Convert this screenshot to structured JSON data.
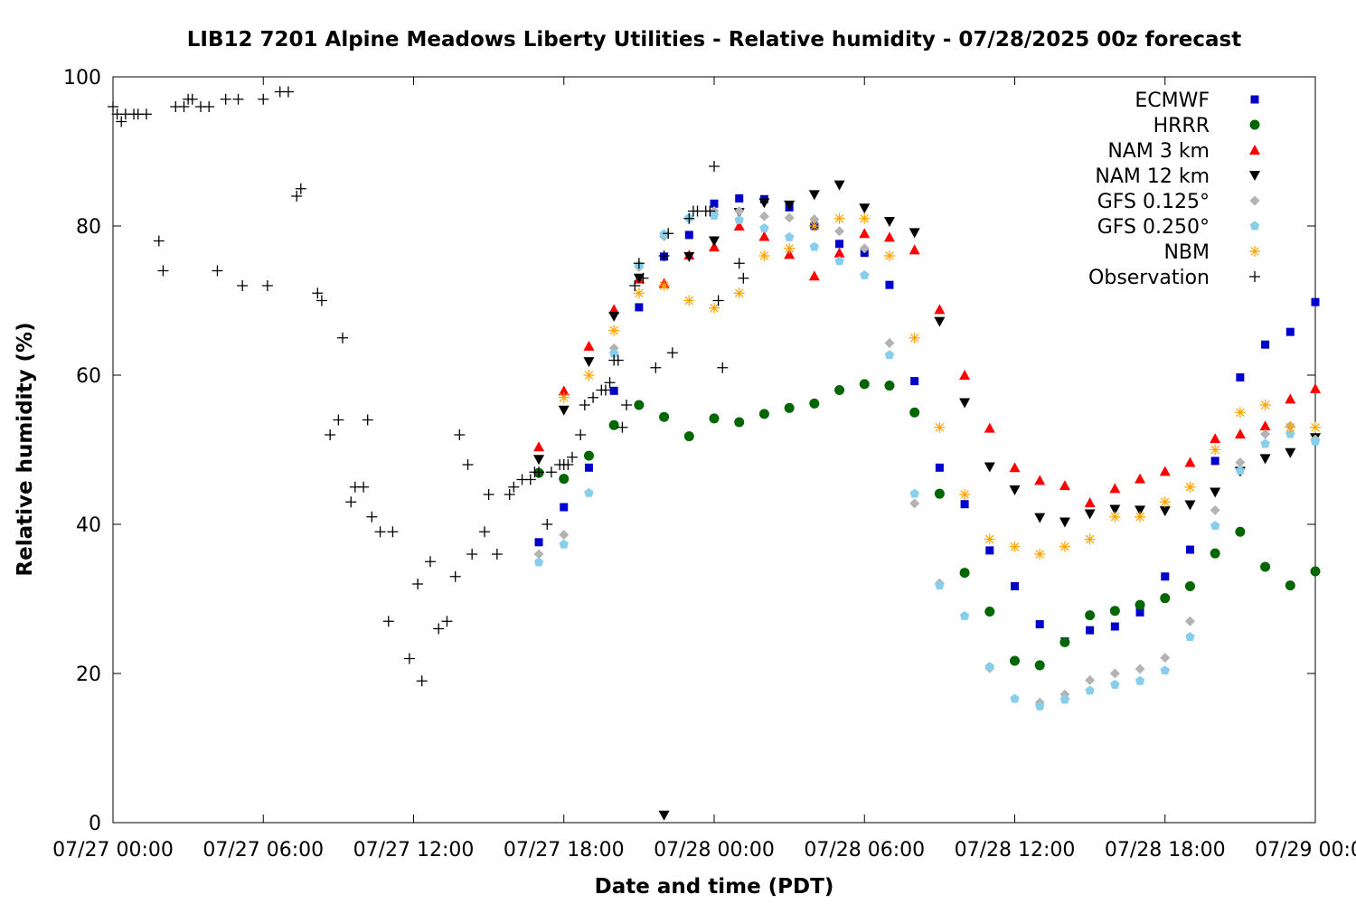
{
  "chart_data": {
    "type": "scatter",
    "title": "LIB12 7201 Alpine Meadows Liberty Utilities - Relative humidity - 07/28/2025 00z forecast",
    "xlabel": "Date and time (PDT)",
    "ylabel": "Relative humidity (%)",
    "xlim": [
      "07/27 00:00",
      "07/29 00:00"
    ],
    "ylim": [
      0,
      100
    ],
    "x_ticks": [
      "07/27 00:00",
      "07/27 06:00",
      "07/27 12:00",
      "07/27 18:00",
      "07/28 00:00",
      "07/28 06:00",
      "07/28 12:00",
      "07/28 18:00",
      "07/29 00:00"
    ],
    "y_ticks": [
      0,
      20,
      40,
      60,
      80,
      100
    ],
    "legend_position": "top-right",
    "grid": false,
    "series": [
      {
        "name": "ECMWF",
        "marker": "square",
        "color": "#0000cc",
        "x": [
          "07/27 17:00",
          "07/27 18:00",
          "07/27 19:00",
          "07/27 20:00",
          "07/27 21:00",
          "07/27 22:00",
          "07/27 23:00",
          "07/28 00:00",
          "07/28 01:00",
          "07/28 02:00",
          "07/28 03:00",
          "07/28 04:00",
          "07/28 05:00",
          "07/28 06:00",
          "07/28 07:00",
          "07/28 08:00",
          "07/28 09:00",
          "07/28 10:00",
          "07/28 11:00",
          "07/28 12:00",
          "07/28 13:00",
          "07/28 14:00",
          "07/28 15:00",
          "07/28 16:00",
          "07/28 17:00",
          "07/28 18:00",
          "07/28 19:00",
          "07/28 20:00",
          "07/28 21:00",
          "07/28 22:00",
          "07/28 23:00",
          "07/29 00:00"
        ],
        "y": [
          37.6,
          42.3,
          47.6,
          57.9,
          69.1,
          75.9,
          78.8,
          83.0,
          83.7,
          83.6,
          82.5,
          80.0,
          77.6,
          76.4,
          72.1,
          59.2,
          47.6,
          42.7,
          36.5,
          31.7,
          26.6,
          24.3,
          25.8,
          26.3,
          28.2,
          33.0,
          36.6,
          48.5,
          59.7,
          64.1,
          65.8,
          69.8
        ]
      },
      {
        "name": "HRRR",
        "marker": "circle",
        "color": "#006600",
        "x": [
          "07/27 17:00",
          "07/27 18:00",
          "07/27 19:00",
          "07/27 20:00",
          "07/27 21:00",
          "07/27 22:00",
          "07/27 23:00",
          "07/28 00:00",
          "07/28 01:00",
          "07/28 02:00",
          "07/28 03:00",
          "07/28 04:00",
          "07/28 05:00",
          "07/28 06:00",
          "07/28 07:00",
          "07/28 08:00",
          "07/28 09:00",
          "07/28 10:00",
          "07/28 11:00",
          "07/28 12:00",
          "07/28 13:00",
          "07/28 14:00",
          "07/28 15:00",
          "07/28 16:00",
          "07/28 17:00",
          "07/28 18:00",
          "07/28 19:00",
          "07/28 20:00",
          "07/28 21:00",
          "07/28 22:00",
          "07/28 23:00",
          "07/29 00:00"
        ],
        "y": [
          46.9,
          46.1,
          49.2,
          53.3,
          56.0,
          54.4,
          51.8,
          54.2,
          53.7,
          54.8,
          55.6,
          56.2,
          58.0,
          58.8,
          58.6,
          55.0,
          44.1,
          33.5,
          28.3,
          21.7,
          21.1,
          24.2,
          27.8,
          28.4,
          29.2,
          30.1,
          31.7,
          36.1,
          39.0,
          34.3,
          31.8,
          33.7
        ]
      },
      {
        "name": "NAM 3 km",
        "marker": "triangle-up",
        "color": "#ff0000",
        "x": [
          "07/27 17:00",
          "07/27 18:00",
          "07/27 19:00",
          "07/27 20:00",
          "07/27 21:00",
          "07/27 22:00",
          "07/27 23:00",
          "07/28 00:00",
          "07/28 01:00",
          "07/28 02:00",
          "07/28 03:00",
          "07/28 04:00",
          "07/28 05:00",
          "07/28 06:00",
          "07/28 07:00",
          "07/28 08:00",
          "07/28 09:00",
          "07/28 10:00",
          "07/28 11:00",
          "07/28 12:00",
          "07/28 13:00",
          "07/28 14:00",
          "07/28 15:00",
          "07/28 16:00",
          "07/28 17:00",
          "07/28 18:00",
          "07/28 19:00",
          "07/28 20:00",
          "07/28 21:00",
          "07/28 22:00",
          "07/28 23:00",
          "07/29 00:00"
        ],
        "y": [
          50.4,
          57.9,
          63.9,
          68.8,
          72.9,
          72.3,
          76.1,
          77.2,
          80.0,
          78.6,
          76.2,
          73.3,
          76.4,
          79.0,
          78.5,
          76.8,
          68.8,
          60.0,
          52.9,
          47.6,
          45.9,
          45.2,
          42.9,
          44.8,
          46.1,
          47.1,
          48.3,
          51.5,
          52.1,
          53.2,
          56.8,
          58.2
        ]
      },
      {
        "name": "NAM 12 km",
        "marker": "triangle-down",
        "color": "#000000",
        "x": [
          "07/27 17:00",
          "07/27 18:00",
          "07/27 19:00",
          "07/27 20:00",
          "07/27 21:00",
          "07/27 22:00",
          "07/27 23:00",
          "07/28 00:00",
          "07/28 01:00",
          "07/28 02:00",
          "07/28 03:00",
          "07/28 04:00",
          "07/28 05:00",
          "07/28 06:00",
          "07/28 07:00",
          "07/28 08:00",
          "07/28 09:00",
          "07/28 10:00",
          "07/28 11:00",
          "07/28 12:00",
          "07/28 13:00",
          "07/28 14:00",
          "07/28 15:00",
          "07/28 16:00",
          "07/28 17:00",
          "07/28 18:00",
          "07/28 19:00",
          "07/28 20:00",
          "07/28 21:00",
          "07/28 22:00",
          "07/28 23:00",
          "07/29 00:00"
        ],
        "y": [
          48.7,
          55.3,
          61.8,
          67.9,
          73.0,
          1.0,
          75.9,
          78.0,
          81.8,
          83.1,
          82.8,
          84.2,
          85.5,
          82.4,
          80.6,
          79.1,
          67.2,
          56.3,
          47.7,
          44.6,
          40.9,
          40.3,
          41.4,
          42.0,
          41.9,
          41.8,
          42.6,
          44.3,
          47.1,
          48.8,
          49.6,
          51.6
        ]
      },
      {
        "name": "GFS 0.125°",
        "marker": "diamond",
        "color": "#b3b3b3",
        "x": [
          "07/27 17:00",
          "07/27 18:00",
          "07/27 20:00",
          "07/27 21:00",
          "07/27 22:00",
          "07/27 23:00",
          "07/28 00:00",
          "07/28 01:00",
          "07/28 02:00",
          "07/28 03:00",
          "07/28 04:00",
          "07/28 05:00",
          "07/28 06:00",
          "07/28 07:00",
          "07/28 08:00",
          "07/28 09:00",
          "07/28 11:00",
          "07/28 13:00",
          "07/28 14:00",
          "07/28 15:00",
          "07/28 16:00",
          "07/28 17:00",
          "07/28 18:00",
          "07/28 19:00",
          "07/28 20:00",
          "07/28 21:00",
          "07/28 22:00",
          "07/28 23:00",
          "07/29 00:00"
        ],
        "y": [
          36.0,
          38.6,
          63.6,
          74.5,
          78.6,
          81.0,
          82.0,
          82.0,
          81.3,
          81.1,
          80.9,
          79.3,
          77.0,
          64.3,
          42.8,
          32.1,
          20.7,
          16.1,
          17.2,
          19.1,
          20.0,
          20.6,
          22.1,
          27.0,
          41.9,
          48.3,
          52.1,
          53.2,
          51.4
        ]
      },
      {
        "name": "GFS 0.250°",
        "marker": "pentagon",
        "color": "#87ceeb",
        "x": [
          "07/27 17:00",
          "07/27 18:00",
          "07/27 19:00",
          "07/27 20:00",
          "07/27 21:00",
          "07/27 22:00",
          "07/27 23:00",
          "07/28 00:00",
          "07/28 01:00",
          "07/28 02:00",
          "07/28 03:00",
          "07/28 04:00",
          "07/28 05:00",
          "07/28 06:00",
          "07/28 07:00",
          "07/28 08:00",
          "07/28 09:00",
          "07/28 10:00",
          "07/28 11:00",
          "07/28 12:00",
          "07/28 13:00",
          "07/28 14:00",
          "07/28 15:00",
          "07/28 16:00",
          "07/28 17:00",
          "07/28 18:00",
          "07/28 19:00",
          "07/28 20:00",
          "07/28 21:00",
          "07/28 22:00",
          "07/28 23:00",
          "07/29 00:00"
        ],
        "y": [
          34.9,
          37.3,
          44.2,
          62.9,
          74.7,
          78.9,
          81.1,
          81.4,
          80.8,
          79.7,
          78.5,
          77.2,
          75.3,
          73.4,
          62.7,
          44.1,
          31.8,
          27.7,
          20.9,
          16.6,
          15.6,
          16.5,
          17.7,
          18.5,
          19.0,
          20.4,
          24.9,
          39.8,
          47.2,
          50.8,
          52.1,
          51.1
        ]
      },
      {
        "name": "NBM",
        "marker": "asterisk",
        "color": "#ffa500",
        "x": [
          "07/27 18:00",
          "07/27 19:00",
          "07/27 20:00",
          "07/27 21:00",
          "07/27 22:00",
          "07/27 23:00",
          "07/28 00:00",
          "07/28 01:00",
          "07/28 02:00",
          "07/28 03:00",
          "07/28 04:00",
          "07/28 05:00",
          "07/28 06:00",
          "07/28 07:00",
          "07/28 08:00",
          "07/28 09:00",
          "07/28 10:00",
          "07/28 11:00",
          "07/28 12:00",
          "07/28 13:00",
          "07/28 14:00",
          "07/28 15:00",
          "07/28 16:00",
          "07/28 17:00",
          "07/28 18:00",
          "07/28 19:00",
          "07/28 20:00",
          "07/28 21:00",
          "07/28 22:00",
          "07/28 23:00",
          "07/29 00:00"
        ],
        "y": [
          57.0,
          60.0,
          66.0,
          71.0,
          72.0,
          70.0,
          69.0,
          71.0,
          76.0,
          77.0,
          80.0,
          81.0,
          81.0,
          76.0,
          65.0,
          53.0,
          44.0,
          38.0,
          37.0,
          36.0,
          37.0,
          38.0,
          41.0,
          41.0,
          43.0,
          45.0,
          50.0,
          55.0,
          56.0,
          53.0,
          53.0
        ]
      },
      {
        "name": "Observation",
        "marker": "plus",
        "color": "#000000",
        "x": [
          "07/27 00:00",
          "07/27 00:10",
          "07/27 00:20",
          "07/27 00:30",
          "07/27 00:50",
          "07/27 01:00",
          "07/27 01:20",
          "07/27 01:50",
          "07/27 02:00",
          "07/27 02:30",
          "07/27 02:50",
          "07/27 03:00",
          "07/27 03:10",
          "07/27 03:30",
          "07/27 03:50",
          "07/27 04:10",
          "07/27 04:30",
          "07/27 05:00",
          "07/27 05:10",
          "07/27 06:00",
          "07/27 06:10",
          "07/27 06:40",
          "07/27 07:00",
          "07/27 07:20",
          "07/27 07:30",
          "07/27 08:10",
          "07/27 08:20",
          "07/27 08:40",
          "07/27 09:00",
          "07/27 09:10",
          "07/27 09:30",
          "07/27 09:40",
          "07/27 10:00",
          "07/27 10:10",
          "07/27 10:20",
          "07/27 10:40",
          "07/27 11:00",
          "07/27 11:10",
          "07/27 11:50",
          "07/27 12:10",
          "07/27 12:20",
          "07/27 12:40",
          "07/27 13:00",
          "07/27 13:20",
          "07/27 13:40",
          "07/27 13:50",
          "07/27 14:10",
          "07/27 14:20",
          "07/27 14:50",
          "07/27 15:00",
          "07/27 15:20",
          "07/27 15:50",
          "07/27 16:00",
          "07/27 16:20",
          "07/27 16:40",
          "07/27 16:50",
          "07/27 17:00",
          "07/27 17:20",
          "07/27 17:30",
          "07/27 17:50",
          "07/27 18:00",
          "07/27 18:10",
          "07/27 18:20",
          "07/27 18:40",
          "07/27 18:50",
          "07/27 19:10",
          "07/27 19:30",
          "07/27 19:40",
          "07/27 19:50",
          "07/27 20:00",
          "07/27 20:10",
          "07/27 20:20",
          "07/27 20:30",
          "07/27 20:50",
          "07/27 21:00",
          "07/27 21:10",
          "07/27 21:40",
          "07/27 22:00",
          "07/27 22:10",
          "07/27 22:20",
          "07/27 23:00",
          "07/27 23:10",
          "07/27 23:20",
          "07/27 23:40",
          "07/27 23:50",
          "07/28 00:00",
          "07/28 00:10",
          "07/28 00:20",
          "07/28 01:00",
          "07/28 01:10"
        ],
        "y": [
          96,
          95,
          94,
          95,
          95,
          95,
          95,
          78,
          74,
          96,
          96,
          97,
          97,
          96,
          96,
          74,
          97,
          97,
          72,
          97,
          72,
          98,
          98,
          84,
          85,
          71,
          70,
          52,
          54,
          65,
          43,
          45,
          45,
          54,
          41,
          39,
          27,
          39,
          22,
          32,
          19,
          35,
          26,
          27,
          33,
          52,
          48,
          36,
          39,
          44,
          36,
          44,
          45,
          46,
          46,
          47,
          47,
          40,
          47,
          48,
          48,
          48,
          49,
          52,
          56,
          57,
          58,
          58,
          59,
          62,
          62,
          53,
          56,
          72,
          75,
          73,
          61,
          76,
          79,
          63,
          81,
          82,
          82,
          82,
          82,
          88,
          70,
          61,
          75,
          73
        ]
      }
    ]
  }
}
